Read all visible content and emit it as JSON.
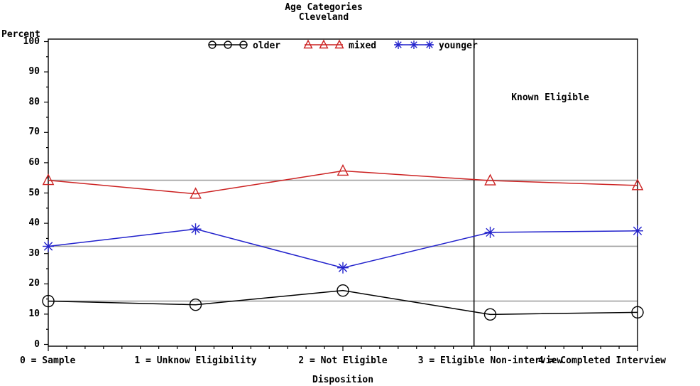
{
  "titles": {
    "line1": "Age Categories",
    "line2": "Cleveland"
  },
  "axes": {
    "y_label": "Percent",
    "x_label": "Disposition",
    "y_ticks": [
      0,
      10,
      20,
      30,
      40,
      50,
      60,
      70,
      80,
      90,
      100
    ]
  },
  "annotation": {
    "text": "Known Eligible"
  },
  "chart_data": {
    "type": "line",
    "title": "Age Categories",
    "subtitle": "Cleveland",
    "xlabel": "Disposition",
    "ylabel": "Percent",
    "ylim": [
      0,
      100
    ],
    "grid": false,
    "legend_position": "top-inside",
    "categories": [
      "0 = Sample",
      "1 = Unknow Eligibility",
      "2 = Not Eligible",
      "3 = Eligible Non-interview",
      "4 = Completed Interview"
    ],
    "series": [
      {
        "name": "older",
        "color": "#000000",
        "marker": "circle",
        "values": [
          14.3,
          13.1,
          17.8,
          9.9,
          10.6
        ]
      },
      {
        "name": "mixed",
        "color": "#cc2222",
        "marker": "triangle",
        "values": [
          54.2,
          49.7,
          57.3,
          54.1,
          52.5
        ]
      },
      {
        "name": "younger",
        "color": "#2222cc",
        "marker": "asterisk",
        "values": [
          32.4,
          38.1,
          25.3,
          37.0,
          37.5
        ]
      }
    ],
    "reference_lines_y": [
      54.2,
      32.4,
      14.3
    ],
    "reference_line_color": "#a0a0a0",
    "vertical_line_x": 2.89,
    "annotation": {
      "text": "Known Eligible",
      "x": 3.4,
      "y": 81.5
    }
  }
}
